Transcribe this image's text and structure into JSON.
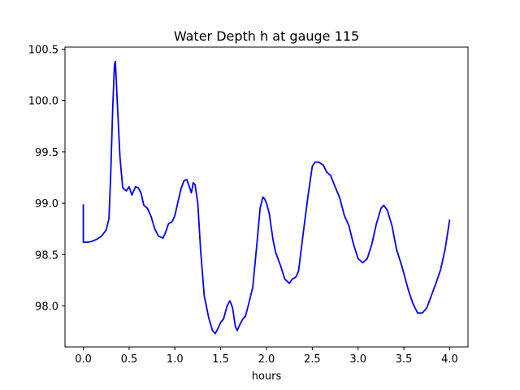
{
  "chart_data": {
    "type": "line",
    "title": "Water Depth h at gauge 115",
    "xlabel": "hours",
    "ylabel": "",
    "xlim": [
      -0.2,
      4.2
    ],
    "ylim": [
      97.6,
      100.52
    ],
    "xticks": [
      "0.0",
      "0.5",
      "1.0",
      "1.5",
      "2.0",
      "2.5",
      "3.0",
      "3.5",
      "4.0"
    ],
    "xtick_values": [
      0.0,
      0.5,
      1.0,
      1.5,
      2.0,
      2.5,
      3.0,
      3.5,
      4.0
    ],
    "yticks": [
      "98.0",
      "98.5",
      "99.0",
      "99.5",
      "100.0",
      "100.5"
    ],
    "ytick_values": [
      98.0,
      98.5,
      99.0,
      99.5,
      100.0,
      100.5
    ],
    "grid": false,
    "series": [
      {
        "color": "#0000ff",
        "x": [
          0.0,
          0.0,
          0.05,
          0.1,
          0.15,
          0.2,
          0.25,
          0.28,
          0.3,
          0.32,
          0.34,
          0.35,
          0.37,
          0.4,
          0.43,
          0.47,
          0.5,
          0.53,
          0.57,
          0.6,
          0.63,
          0.66,
          0.7,
          0.74,
          0.78,
          0.82,
          0.87,
          0.9,
          0.93,
          0.97,
          1.0,
          1.03,
          1.07,
          1.1,
          1.13,
          1.15,
          1.18,
          1.2,
          1.22,
          1.25,
          1.28,
          1.32,
          1.37,
          1.41,
          1.44,
          1.47,
          1.5,
          1.53,
          1.57,
          1.6,
          1.63,
          1.66,
          1.68,
          1.71,
          1.74,
          1.77,
          1.8,
          1.85,
          1.9,
          1.93,
          1.96,
          1.98,
          2.0,
          2.03,
          2.07,
          2.1,
          2.15,
          2.2,
          2.25,
          2.28,
          2.32,
          2.35,
          2.4,
          2.45,
          2.5,
          2.53,
          2.57,
          2.62,
          2.66,
          2.7,
          2.74,
          2.8,
          2.85,
          2.9,
          2.95,
          3.0,
          3.05,
          3.1,
          3.15,
          3.2,
          3.25,
          3.28,
          3.32,
          3.37,
          3.42,
          3.48,
          3.55,
          3.6,
          3.65,
          3.7,
          3.75,
          3.8,
          3.85,
          3.9,
          3.95,
          4.0
        ],
        "y": [
          98.99,
          98.62,
          98.62,
          98.63,
          98.65,
          98.68,
          98.74,
          98.85,
          99.3,
          99.9,
          100.35,
          100.38,
          100.0,
          99.45,
          99.15,
          99.12,
          99.16,
          99.08,
          99.16,
          99.15,
          99.1,
          98.98,
          98.95,
          98.87,
          98.75,
          98.68,
          98.66,
          98.72,
          98.8,
          98.82,
          98.88,
          99.0,
          99.15,
          99.22,
          99.23,
          99.18,
          99.1,
          99.2,
          99.18,
          99.0,
          98.55,
          98.1,
          97.88,
          97.76,
          97.73,
          97.78,
          97.84,
          97.87,
          98.0,
          98.05,
          97.98,
          97.8,
          97.76,
          97.82,
          97.87,
          97.9,
          98.0,
          98.18,
          98.65,
          98.95,
          99.06,
          99.04,
          99.0,
          98.9,
          98.65,
          98.52,
          98.4,
          98.26,
          98.22,
          98.26,
          98.28,
          98.34,
          98.7,
          99.05,
          99.36,
          99.4,
          99.4,
          99.37,
          99.3,
          99.27,
          99.18,
          99.05,
          98.88,
          98.78,
          98.6,
          98.46,
          98.42,
          98.46,
          98.6,
          98.8,
          98.95,
          98.98,
          98.93,
          98.78,
          98.55,
          98.38,
          98.15,
          98.02,
          97.93,
          97.93,
          97.98,
          98.1,
          98.22,
          98.35,
          98.55,
          98.84
        ]
      }
    ]
  }
}
